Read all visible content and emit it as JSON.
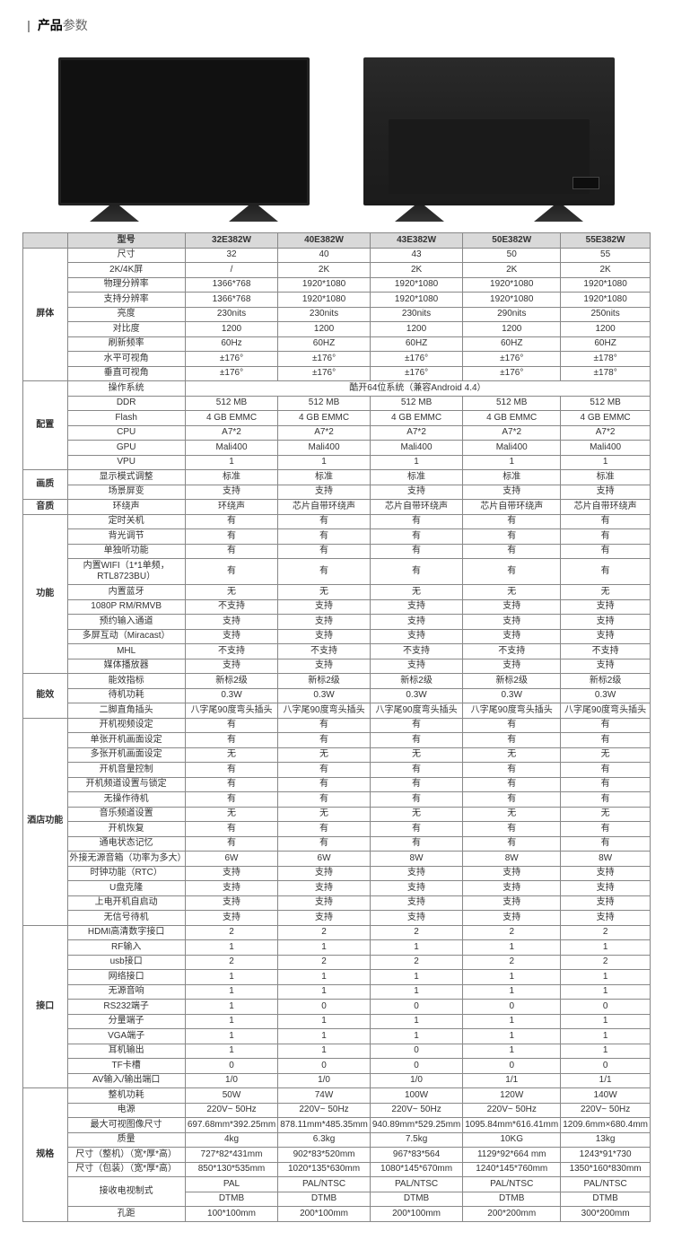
{
  "title": {
    "label_bold": "产品",
    "label_light": "参数"
  },
  "header": {
    "model_label": "型号",
    "models": [
      "32E382W",
      "40E382W",
      "43E382W",
      "50E382W",
      "55E382W"
    ]
  },
  "groups": [
    {
      "name": "屏体",
      "rows": [
        {
          "p": "尺寸",
          "v": [
            "32",
            "40",
            "43",
            "50",
            "55"
          ]
        },
        {
          "p": "2K/4K屏",
          "v": [
            "/",
            "2K",
            "2K",
            "2K",
            "2K"
          ]
        },
        {
          "p": "物理分辨率",
          "v": [
            "1366*768",
            "1920*1080",
            "1920*1080",
            "1920*1080",
            "1920*1080"
          ]
        },
        {
          "p": "支持分辨率",
          "v": [
            "1366*768",
            "1920*1080",
            "1920*1080",
            "1920*1080",
            "1920*1080"
          ]
        },
        {
          "p": "亮度",
          "v": [
            "230nits",
            "230nits",
            "230nits",
            "290nits",
            "250nits"
          ]
        },
        {
          "p": "对比度",
          "v": [
            "1200",
            "1200",
            "1200",
            "1200",
            "1200"
          ]
        },
        {
          "p": "刷新频率",
          "v": [
            "60Hz",
            "60HZ",
            "60HZ",
            "60HZ",
            "60HZ"
          ]
        },
        {
          "p": "水平可视角",
          "v": [
            "±176°",
            "±176°",
            "±176°",
            "±176°",
            "±178°"
          ]
        },
        {
          "p": "垂直可视角",
          "v": [
            "±176°",
            "±176°",
            "±176°",
            "±176°",
            "±178°"
          ]
        }
      ]
    },
    {
      "name": "配置",
      "rows": [
        {
          "p": "操作系统",
          "span": "酷开64位系统（兼容Android 4.4）"
        },
        {
          "p": "DDR",
          "v": [
            "512 MB",
            "512 MB",
            "512 MB",
            "512 MB",
            "512 MB"
          ]
        },
        {
          "p": "Flash",
          "v": [
            "4 GB EMMC",
            "4 GB EMMC",
            "4 GB EMMC",
            "4 GB EMMC",
            "4 GB EMMC"
          ]
        },
        {
          "p": "CPU",
          "v": [
            "A7*2",
            "A7*2",
            "A7*2",
            "A7*2",
            "A7*2"
          ]
        },
        {
          "p": "GPU",
          "v": [
            "Mali400",
            "Mali400",
            "Mali400",
            "Mali400",
            "Mali400"
          ]
        },
        {
          "p": "VPU",
          "v": [
            "1",
            "1",
            "1",
            "1",
            "1"
          ]
        }
      ]
    },
    {
      "name": "画质",
      "rows": [
        {
          "p": "显示模式调整",
          "v": [
            "标准",
            "标准",
            "标准",
            "标准",
            "标准"
          ]
        },
        {
          "p": "场景屏变",
          "v": [
            "支持",
            "支持",
            "支持",
            "支持",
            "支持"
          ]
        }
      ]
    },
    {
      "name": "音质",
      "rows": [
        {
          "p": "环绕声",
          "v": [
            "环绕声",
            "芯片自带环绕声",
            "芯片自带环绕声",
            "芯片自带环绕声",
            "芯片自带环绕声"
          ]
        }
      ]
    },
    {
      "name": "功能",
      "rows": [
        {
          "p": "定时关机",
          "v": [
            "有",
            "有",
            "有",
            "有",
            "有"
          ]
        },
        {
          "p": "背光调节",
          "v": [
            "有",
            "有",
            "有",
            "有",
            "有"
          ]
        },
        {
          "p": "单独听功能",
          "v": [
            "有",
            "有",
            "有",
            "有",
            "有"
          ]
        },
        {
          "p": "内置WIFI（1*1单频，RTL8723BU）",
          "v": [
            "有",
            "有",
            "有",
            "有",
            "有"
          ]
        },
        {
          "p": "内置蓝牙",
          "v": [
            "无",
            "无",
            "无",
            "无",
            "无"
          ]
        },
        {
          "p": "1080P RM/RMVB",
          "v": [
            "不支持",
            "支持",
            "支持",
            "支持",
            "支持"
          ]
        },
        {
          "p": "预约输入通道",
          "v": [
            "支持",
            "支持",
            "支持",
            "支持",
            "支持"
          ]
        },
        {
          "p": "多屏互动（Miracast）",
          "v": [
            "支持",
            "支持",
            "支持",
            "支持",
            "支持"
          ]
        },
        {
          "p": "MHL",
          "v": [
            "不支持",
            "不支持",
            "不支持",
            "不支持",
            "不支持"
          ]
        },
        {
          "p": "媒体播放器",
          "v": [
            "支持",
            "支持",
            "支持",
            "支持",
            "支持"
          ]
        }
      ]
    },
    {
      "name": "能效",
      "rows": [
        {
          "p": "能效指标",
          "v": [
            "新标2级",
            "新标2级",
            "新标2级",
            "新标2级",
            "新标2级"
          ]
        },
        {
          "p": "待机功耗",
          "v": [
            "0.3W",
            "0.3W",
            "0.3W",
            "0.3W",
            "0.3W"
          ]
        },
        {
          "p": "二脚直角插头",
          "v": [
            "八字尾90度弯头插头",
            "八字尾90度弯头插头",
            "八字尾90度弯头插头",
            "八字尾90度弯头插头",
            "八字尾90度弯头插头"
          ]
        }
      ]
    },
    {
      "name": "酒店功能",
      "rows": [
        {
          "p": "开机视频设定",
          "v": [
            "有",
            "有",
            "有",
            "有",
            "有"
          ]
        },
        {
          "p": "单张开机画面设定",
          "v": [
            "有",
            "有",
            "有",
            "有",
            "有"
          ]
        },
        {
          "p": "多张开机画面设定",
          "v": [
            "无",
            "无",
            "无",
            "无",
            "无"
          ]
        },
        {
          "p": "开机音量控制",
          "v": [
            "有",
            "有",
            "有",
            "有",
            "有"
          ]
        },
        {
          "p": "开机频道设置与锁定",
          "v": [
            "有",
            "有",
            "有",
            "有",
            "有"
          ]
        },
        {
          "p": "无操作待机",
          "v": [
            "有",
            "有",
            "有",
            "有",
            "有"
          ]
        },
        {
          "p": "音乐频道设置",
          "v": [
            "无",
            "无",
            "无",
            "无",
            "无"
          ]
        },
        {
          "p": "开机恢复",
          "v": [
            "有",
            "有",
            "有",
            "有",
            "有"
          ]
        },
        {
          "p": "通电状态记忆",
          "v": [
            "有",
            "有",
            "有",
            "有",
            "有"
          ]
        },
        {
          "p": "外接无源音箱（功率为多大）",
          "v": [
            "6W",
            "6W",
            "8W",
            "8W",
            "8W"
          ]
        },
        {
          "p": "时钟功能（RTC）",
          "v": [
            "支持",
            "支持",
            "支持",
            "支持",
            "支持"
          ]
        },
        {
          "p": "U盘克隆",
          "v": [
            "支持",
            "支持",
            "支持",
            "支持",
            "支持"
          ]
        },
        {
          "p": "上电开机自启动",
          "v": [
            "支持",
            "支持",
            "支持",
            "支持",
            "支持"
          ]
        },
        {
          "p": "无信号待机",
          "v": [
            "支持",
            "支持",
            "支持",
            "支持",
            "支持"
          ]
        }
      ]
    },
    {
      "name": "接口",
      "rows": [
        {
          "p": "HDMI高清数字接口",
          "v": [
            "2",
            "2",
            "2",
            "2",
            "2"
          ]
        },
        {
          "p": "RF输入",
          "v": [
            "1",
            "1",
            "1",
            "1",
            "1"
          ]
        },
        {
          "p": "usb接口",
          "v": [
            "2",
            "2",
            "2",
            "2",
            "2"
          ]
        },
        {
          "p": "网络接口",
          "v": [
            "1",
            "1",
            "1",
            "1",
            "1"
          ]
        },
        {
          "p": "无源音响",
          "v": [
            "1",
            "1",
            "1",
            "1",
            "1"
          ]
        },
        {
          "p": "RS232端子",
          "v": [
            "1",
            "0",
            "0",
            "0",
            "0"
          ]
        },
        {
          "p": "分量端子",
          "v": [
            "1",
            "1",
            "1",
            "1",
            "1"
          ]
        },
        {
          "p": "VGA端子",
          "v": [
            "1",
            "1",
            "1",
            "1",
            "1"
          ]
        },
        {
          "p": "耳机输出",
          "v": [
            "1",
            "1",
            "0",
            "1",
            "1"
          ]
        },
        {
          "p": "TF卡槽",
          "v": [
            "0",
            "0",
            "0",
            "0",
            "0"
          ]
        },
        {
          "p": "AV输入/输出端口",
          "v": [
            "1/0",
            "1/0",
            "1/0",
            "1/1",
            "1/1"
          ]
        }
      ]
    },
    {
      "name": "规格",
      "rows": [
        {
          "p": "整机功耗",
          "v": [
            "50W",
            "74W",
            "100W",
            "120W",
            "140W"
          ]
        },
        {
          "p": "电源",
          "v": [
            "220V~ 50Hz",
            "220V~ 50Hz",
            "220V~ 50Hz",
            "220V~ 50Hz",
            "220V~ 50Hz"
          ]
        },
        {
          "p": "最大可视图像尺寸",
          "v": [
            "697.68mm*392.25mm",
            "878.11mm*485.35mm",
            "940.89mm*529.25mm",
            "1095.84mm*616.41mm",
            "1209.6mm×680.4mm"
          ]
        },
        {
          "p": "质量",
          "v": [
            "4kg",
            "6.3kg",
            "7.5kg",
            "10KG",
            "13kg"
          ]
        },
        {
          "p": "尺寸（整机）（宽*厚*高）",
          "v": [
            "727*82*431mm",
            "902*83*520mm",
            "967*83*564",
            "1129*92*664 mm",
            "1243*91*730"
          ]
        },
        {
          "p": "尺寸（包装）（宽*厚*高）",
          "v": [
            "850*130*535mm",
            "1020*135*630mm",
            "1080*145*670mm",
            "1240*145*760mm",
            "1350*160*830mm"
          ]
        },
        {
          "p": "接收电视制式",
          "dual": true,
          "v1": [
            "PAL",
            "PAL/NTSC",
            "PAL/NTSC",
            "PAL/NTSC",
            "PAL/NTSC"
          ],
          "v2": [
            "DTMB",
            "DTMB",
            "DTMB",
            "DTMB",
            "DTMB"
          ]
        },
        {
          "p": "孔距",
          "v": [
            "100*100mm",
            "200*100mm",
            "200*100mm",
            "200*200mm",
            "300*200mm"
          ]
        }
      ]
    }
  ]
}
